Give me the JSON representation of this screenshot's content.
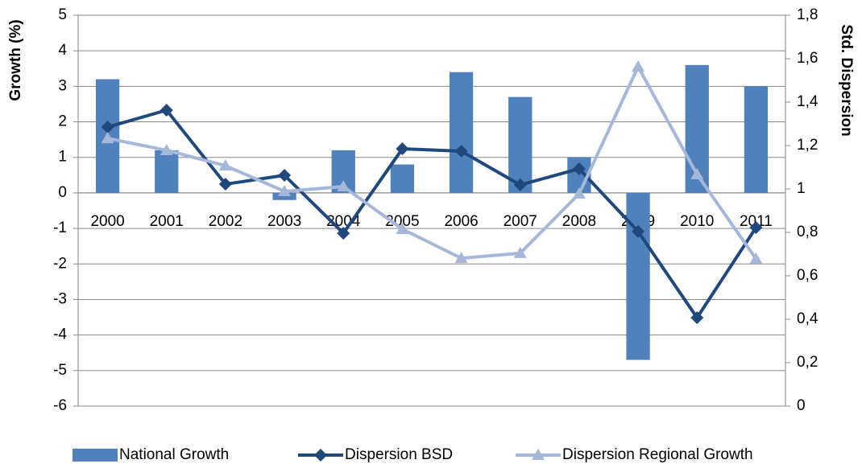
{
  "chart_data": {
    "type": "bar-line",
    "ylabel": "Growth (%)",
    "y2label": "Std. Dispersion",
    "categories": [
      "2000",
      "2001",
      "2002",
      "2003",
      "2004",
      "2005",
      "2006",
      "2007",
      "2008",
      "2009",
      "2010",
      "2011"
    ],
    "series": [
      {
        "name": "National Growth",
        "type": "bar",
        "color": "#4f81bd",
        "values": [
          3.2,
          1.2,
          0,
          -0.2,
          1.2,
          0.8,
          3.4,
          2.7,
          1.0,
          -4.7,
          3.6,
          3.0
        ]
      },
      {
        "name": "Dispersion BSD",
        "type": "line",
        "marker": "diamond",
        "axis": "y2",
        "color": "#1f497d",
        "values": [
          1.285,
          1.363,
          1.022,
          1.063,
          0.796,
          1.185,
          1.174,
          1.019,
          1.093,
          0.804,
          0.407,
          0.822
        ]
      },
      {
        "name": "Dispersion Regional Growth",
        "type": "line",
        "marker": "triangle",
        "axis": "y2",
        "color": "#a6b8d9",
        "values": [
          1.233,
          1.178,
          1.107,
          0.989,
          1.011,
          0.815,
          0.681,
          0.704,
          0.978,
          1.563,
          1.067,
          0.678
        ]
      }
    ],
    "ylim": [
      -6,
      5
    ],
    "yticks": [
      -6,
      -5,
      -4,
      -3,
      -2,
      -1,
      0,
      1,
      2,
      3,
      4,
      5
    ],
    "y2lim": [
      0,
      1.8
    ],
    "y2ticks": [
      0,
      {
        "value": 0.2,
        "label": "0,2"
      },
      {
        "value": 0.4,
        "label": "0,4"
      },
      {
        "value": 0.6,
        "label": "0,6"
      },
      {
        "value": 0.8,
        "label": "0,8"
      },
      1,
      {
        "value": 1.2,
        "label": "1,2"
      },
      {
        "value": 1.4,
        "label": "1,4"
      },
      {
        "value": 1.6,
        "label": "1,6"
      },
      {
        "value": 1.8,
        "label": "1,8"
      }
    ],
    "grid": true,
    "legend": "bottom"
  }
}
